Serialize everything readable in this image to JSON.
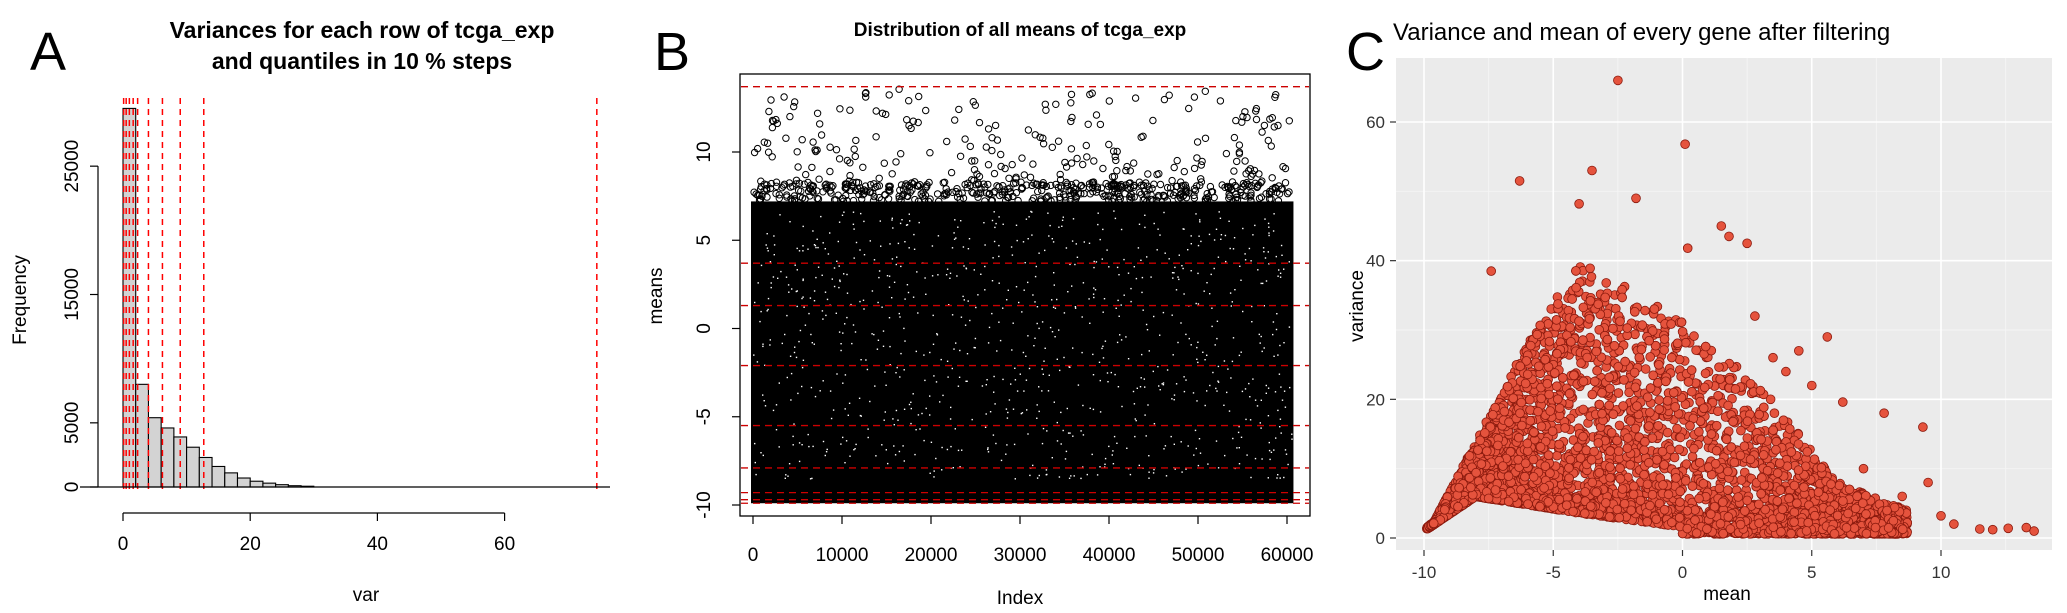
{
  "figure": {
    "panels": {
      "a": {
        "letter": "A"
      },
      "b": {
        "letter": "B"
      },
      "c": {
        "letter": "C"
      }
    }
  },
  "chart_data": [
    {
      "type": "bar",
      "panel": "A",
      "title_line1": "Variances for each row of tcga_exp",
      "title_line2": "and quantiles in 10 % steps",
      "xlabel": "var",
      "ylabel": "Frequency",
      "xlim": [
        0,
        75
      ],
      "ylim": [
        0,
        30000
      ],
      "bin_width": 2,
      "bin_starts": [
        0,
        2,
        4,
        6,
        8,
        10,
        12,
        14,
        16,
        18,
        20,
        22,
        24,
        26,
        28
      ],
      "values": [
        29500,
        8000,
        5400,
        4600,
        3900,
        3100,
        2300,
        1600,
        1100,
        700,
        450,
        300,
        180,
        100,
        60
      ],
      "x_ticks": [
        "0",
        "20",
        "40",
        "60"
      ],
      "y_ticks": [
        "0",
        "5000",
        "15000",
        "25000"
      ],
      "x_tick_values": [
        0,
        20,
        40,
        60
      ],
      "y_tick_values": [
        0,
        5000,
        15000,
        25000
      ],
      "quantile_lines": [
        0.1,
        0.5,
        1.0,
        1.6,
        2.3,
        4.0,
        6.2,
        9.0,
        12.7,
        74.5
      ],
      "bar_color": "#d3d3d3",
      "line_color": "#ff0000"
    },
    {
      "type": "scatter",
      "panel": "B",
      "title": "Distribution of all means of tcga_exp",
      "xlabel": "Index",
      "ylabel": "means",
      "xlim": [
        0,
        61000
      ],
      "ylim": [
        -10,
        14
      ],
      "x_ticks": [
        "0",
        "10000",
        "20000",
        "30000",
        "40000",
        "50000",
        "60000"
      ],
      "y_ticks": [
        "-10",
        "-5",
        "0",
        "5",
        "10"
      ],
      "x_tick_values": [
        0,
        10000,
        20000,
        30000,
        40000,
        50000,
        60000
      ],
      "y_tick_values": [
        -10,
        -5,
        0,
        5,
        10
      ],
      "n_points": 60500,
      "dense_range": [
        -9.9,
        7.2
      ],
      "quantile_lines": [
        -9.9,
        -9.7,
        -9.3,
        -7.9,
        -5.5,
        -2.1,
        1.3,
        3.7,
        13.7
      ],
      "point_color": "#000000",
      "line_color": "#cc0000"
    },
    {
      "type": "scatter",
      "panel": "C",
      "title": "Variance and mean of every gene after filtering",
      "xlabel": "mean",
      "ylabel": "variance",
      "xlim": [
        -10.5,
        14
      ],
      "ylim": [
        -1.5,
        67
      ],
      "x_ticks": [
        "-10",
        "-5",
        "0",
        "5",
        "10"
      ],
      "y_ticks": [
        "0",
        "20",
        "40",
        "60"
      ],
      "x_tick_values": [
        -10,
        -5,
        0,
        5,
        10
      ],
      "y_tick_values": [
        0,
        20,
        40,
        60
      ],
      "highlight_points": [
        {
          "x": -2.5,
          "y": 66
        },
        {
          "x": 0.1,
          "y": 56.8
        },
        {
          "x": -3.5,
          "y": 53
        },
        {
          "x": -6.3,
          "y": 51.5
        },
        {
          "x": -1.8,
          "y": 49
        },
        {
          "x": -4.0,
          "y": 48.2
        },
        {
          "x": 1.5,
          "y": 45
        },
        {
          "x": 0.2,
          "y": 41.8
        },
        {
          "x": 1.8,
          "y": 43.5
        },
        {
          "x": 2.5,
          "y": 42.5
        },
        {
          "x": -7.4,
          "y": 38.5
        },
        {
          "x": 2.8,
          "y": 32
        },
        {
          "x": 4.5,
          "y": 27
        },
        {
          "x": 5.6,
          "y": 29
        },
        {
          "x": 6.2,
          "y": 19.6
        },
        {
          "x": 7.8,
          "y": 18
        },
        {
          "x": 9.3,
          "y": 16
        },
        {
          "x": 9.5,
          "y": 8
        },
        {
          "x": 10.0,
          "y": 3.2
        },
        {
          "x": 10.5,
          "y": 2
        },
        {
          "x": 11.5,
          "y": 1.3
        },
        {
          "x": 12.0,
          "y": 1.2
        },
        {
          "x": 12.6,
          "y": 1.4
        },
        {
          "x": 13.3,
          "y": 1.5
        },
        {
          "x": 13.6,
          "y": 1.0
        },
        {
          "x": 5.0,
          "y": 22
        },
        {
          "x": 7.0,
          "y": 10
        },
        {
          "x": 8.5,
          "y": 6
        },
        {
          "x": 3.5,
          "y": 26
        },
        {
          "x": 4.0,
          "y": 24
        }
      ],
      "n_cloud_points": 5200,
      "point_fill": "#e5533d",
      "point_stroke": "#8b1a0e",
      "panel_background": "#ebebeb",
      "grid_color": "#ffffff"
    }
  ]
}
